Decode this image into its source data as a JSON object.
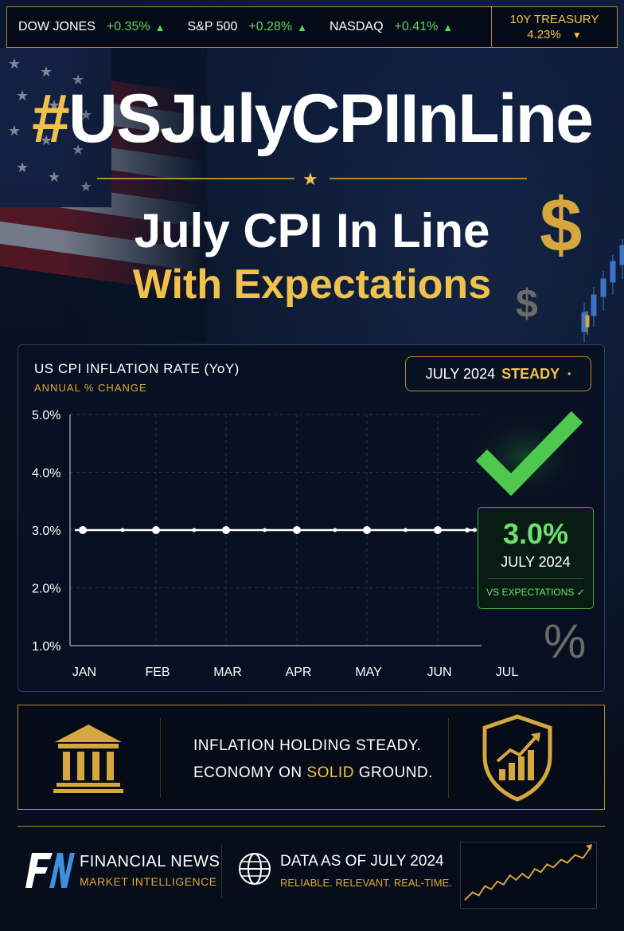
{
  "ticker": {
    "items": [
      {
        "name": "DOW JONES",
        "change": "+0.35%",
        "arrow": "▲"
      },
      {
        "name": "S&P 500",
        "change": "+0.28%",
        "arrow": "▲"
      },
      {
        "name": "NASDAQ",
        "change": "+0.41%",
        "arrow": "▲"
      }
    ],
    "treasury": {
      "label": "10Y TREASURY",
      "value": "4.23%",
      "arrow": "▼"
    }
  },
  "headline": {
    "hash": "#",
    "tag": "USJulyCPIInLine",
    "line1": "July CPI In Line",
    "line2": "With Expectations"
  },
  "chart_panel": {
    "title": "US CPI INFLATION RATE (YoY)",
    "subtitle": "ANNUAL % CHANGE",
    "badge": {
      "period": "JULY 2024",
      "status": "STEADY",
      "dot": "•"
    }
  },
  "callout": {
    "value": "3.0%",
    "date": "JULY 2024",
    "vs": "VS EXPECTATIONS ✓"
  },
  "chart_data": {
    "type": "line",
    "categories": [
      "JAN",
      "FEB",
      "MAR",
      "APR",
      "MAY",
      "JUN",
      "JUL"
    ],
    "series": [
      {
        "values": [
          3.0,
          3.0,
          3.0,
          3.0,
          3.0,
          3.0,
          3.0
        ]
      }
    ],
    "title": "US CPI INFLATION RATE (YoY)",
    "ylabel": "ANNUAL % CHANGE",
    "yticks": [
      "5.0%",
      "4.0%",
      "3.0%",
      "2.0%",
      "1.0%"
    ],
    "ytick_values": [
      5,
      4,
      3,
      2,
      1
    ],
    "ylim": [
      1,
      5
    ],
    "grid": true
  },
  "info": {
    "line1": "INFLATION HOLDING STEADY.",
    "line2_a": "ECONOMY ON ",
    "line2_highlight": "SOLID",
    "line2_b": " GROUND."
  },
  "footer": {
    "brand_name": "FINANCIAL NEWS",
    "brand_tag": "MARKET INTELLIGENCE",
    "data_as_of": "DATA AS OF JULY 2024",
    "tagline": "RELIABLE. RELEVANT. REAL-TIME."
  },
  "icons": {
    "bank": "bank-icon",
    "shield": "shield-growth-icon",
    "globe": "globe-icon",
    "check": "checkmark-icon"
  },
  "colors": {
    "gold": "#f0c24d",
    "green": "#5fd35f",
    "background": "#07101f"
  }
}
